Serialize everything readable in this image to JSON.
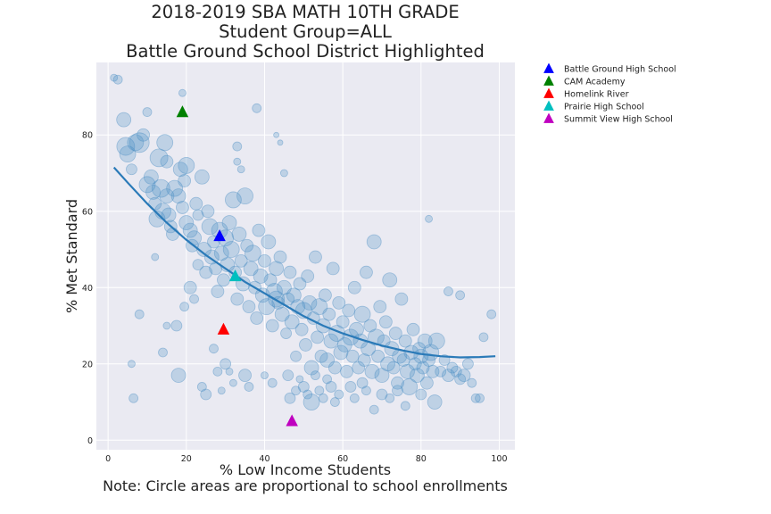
{
  "chart_data": {
    "type": "scatter",
    "title": [
      "2018-2019 SBA MATH 10TH GRADE",
      "Student Group=ALL",
      "Battle Ground School District Highlighted"
    ],
    "xlabel": "% Low Income Students",
    "ylabel": "% Met Standard",
    "note": "Note: Circle areas are proportional to school enrollments",
    "xlim": [
      -3,
      104
    ],
    "ylim": [
      -2.5,
      99
    ],
    "xticks": [
      0,
      20,
      40,
      60,
      80,
      100
    ],
    "yticks": [
      0,
      20,
      40,
      60,
      80
    ],
    "grid": true,
    "legend_position": "outside-top-right",
    "background_color": "#eaeaf2",
    "bubble_color": "#4c8fc4",
    "trend_color": "#2a7ab8",
    "schools_scatter": [
      [
        1.5,
        95,
        4
      ],
      [
        2.5,
        94.5,
        5
      ],
      [
        4,
        84,
        8
      ],
      [
        4.5,
        77,
        10
      ],
      [
        5,
        75,
        9
      ],
      [
        6,
        71,
        6
      ],
      [
        7,
        78,
        9
      ],
      [
        8,
        78,
        11
      ],
      [
        9,
        80,
        7
      ],
      [
        10,
        86,
        5
      ],
      [
        10,
        67,
        9
      ],
      [
        11,
        69,
        8
      ],
      [
        11.5,
        65,
        8
      ],
      [
        12,
        62,
        7
      ],
      [
        12.5,
        58,
        9
      ],
      [
        13,
        74,
        10
      ],
      [
        13.5,
        66,
        10
      ],
      [
        14,
        60,
        9
      ],
      [
        14.5,
        78,
        9
      ],
      [
        15,
        73,
        7
      ],
      [
        15,
        64,
        8
      ],
      [
        15.5,
        59,
        8
      ],
      [
        16,
        56,
        7
      ],
      [
        16.5,
        54,
        7
      ],
      [
        17,
        66,
        9
      ],
      [
        18,
        64,
        8
      ],
      [
        18.5,
        71,
        8
      ],
      [
        19,
        61,
        7
      ],
      [
        19.5,
        68,
        7
      ],
      [
        20,
        72,
        9
      ],
      [
        20,
        57,
        8
      ],
      [
        21,
        55,
        8
      ],
      [
        21.5,
        51,
        7
      ],
      [
        22,
        53,
        8
      ],
      [
        22.5,
        62,
        7
      ],
      [
        23,
        59,
        6
      ],
      [
        23,
        46,
        6
      ],
      [
        24,
        69,
        8
      ],
      [
        24.5,
        50,
        8
      ],
      [
        25,
        44,
        7
      ],
      [
        25.5,
        60,
        7
      ],
      [
        26,
        56,
        9
      ],
      [
        26.5,
        48,
        8
      ],
      [
        27,
        52,
        7
      ],
      [
        27.5,
        45,
        7
      ],
      [
        28,
        39,
        7
      ],
      [
        28.5,
        55,
        9
      ],
      [
        29,
        49,
        8
      ],
      [
        29.5,
        42,
        7
      ],
      [
        30,
        53,
        9
      ],
      [
        30.5,
        46,
        8
      ],
      [
        31,
        57,
        8
      ],
      [
        31.5,
        50,
        9
      ],
      [
        32,
        63,
        9
      ],
      [
        32.5,
        44,
        7
      ],
      [
        33,
        37,
        7
      ],
      [
        33.5,
        54,
        8
      ],
      [
        34,
        47,
        7
      ],
      [
        34.5,
        41,
        8
      ],
      [
        35,
        64,
        9
      ],
      [
        35.5,
        51,
        7
      ],
      [
        36,
        35,
        7
      ],
      [
        36.5,
        45,
        8
      ],
      [
        37,
        49,
        9
      ],
      [
        37.5,
        40,
        7
      ],
      [
        38,
        32,
        7
      ],
      [
        38.5,
        55,
        7
      ],
      [
        39,
        43,
        8
      ],
      [
        39.5,
        38,
        8
      ],
      [
        40,
        47,
        7
      ],
      [
        40.5,
        35,
        9
      ],
      [
        41,
        52,
        8
      ],
      [
        41.5,
        42,
        7
      ],
      [
        42,
        30,
        7
      ],
      [
        42.5,
        39,
        9
      ],
      [
        43,
        45,
        8
      ],
      [
        43.5,
        36,
        7
      ],
      [
        44,
        48,
        7
      ],
      [
        44.5,
        33,
        8
      ],
      [
        45,
        40,
        8
      ],
      [
        45.5,
        28,
        6
      ],
      [
        46,
        37,
        7
      ],
      [
        46.5,
        44,
        7
      ],
      [
        47,
        31,
        8
      ],
      [
        47.5,
        38,
        8
      ],
      [
        48,
        22,
        6
      ],
      [
        48.5,
        35,
        8
      ],
      [
        49,
        41,
        7
      ],
      [
        49.5,
        29,
        7
      ],
      [
        50,
        34,
        9
      ],
      [
        50.5,
        25,
        7
      ],
      [
        51,
        43,
        7
      ],
      [
        51.5,
        36,
        8
      ],
      [
        52,
        19,
        8
      ],
      [
        52.5,
        32,
        7
      ],
      [
        53,
        48,
        7
      ],
      [
        53.5,
        27,
        7
      ],
      [
        54,
        35,
        9
      ],
      [
        54.5,
        22,
        7
      ],
      [
        55,
        30,
        8
      ],
      [
        55.5,
        38,
        7
      ],
      [
        56,
        21,
        8
      ],
      [
        56.5,
        33,
        7
      ],
      [
        57,
        26,
        8
      ],
      [
        57.5,
        45,
        7
      ],
      [
        58,
        19,
        7
      ],
      [
        58.5,
        28,
        9
      ],
      [
        59,
        36,
        7
      ],
      [
        59.5,
        23,
        8
      ],
      [
        60,
        31,
        7
      ],
      [
        60.5,
        25,
        8
      ],
      [
        61,
        18,
        7
      ],
      [
        61.5,
        34,
        7
      ],
      [
        62,
        27,
        9
      ],
      [
        62.5,
        22,
        7
      ],
      [
        63,
        40,
        7
      ],
      [
        63.5,
        29,
        8
      ],
      [
        64,
        19,
        7
      ],
      [
        64.5,
        26,
        8
      ],
      [
        65,
        33,
        9
      ],
      [
        65.5,
        21,
        7
      ],
      [
        66,
        44,
        7
      ],
      [
        66.5,
        24,
        8
      ],
      [
        67,
        30,
        7
      ],
      [
        67.5,
        18,
        8
      ],
      [
        68,
        52,
        8
      ],
      [
        68.5,
        27,
        9
      ],
      [
        69,
        22,
        7
      ],
      [
        69.5,
        35,
        7
      ],
      [
        70,
        17,
        8
      ],
      [
        70.5,
        26,
        7
      ],
      [
        71,
        31,
        7
      ],
      [
        71.5,
        20,
        8
      ],
      [
        72,
        42,
        8
      ],
      [
        72.5,
        24,
        8
      ],
      [
        73,
        19,
        7
      ],
      [
        73.5,
        28,
        7
      ],
      [
        74,
        15,
        7
      ],
      [
        74.5,
        22,
        8
      ],
      [
        75,
        37,
        7
      ],
      [
        75.5,
        21,
        7
      ],
      [
        76,
        26,
        7
      ],
      [
        76.5,
        18,
        8
      ],
      [
        77,
        14,
        9
      ],
      [
        77.5,
        23,
        8
      ],
      [
        78,
        29,
        7
      ],
      [
        78.5,
        20,
        7
      ],
      [
        79,
        17,
        8
      ],
      [
        79.5,
        24,
        7
      ],
      [
        80,
        22,
        8
      ],
      [
        80.5,
        19,
        7
      ],
      [
        81,
        26,
        8
      ],
      [
        81.5,
        15,
        7
      ],
      [
        82,
        21,
        7
      ],
      [
        82.5,
        23,
        9
      ],
      [
        83,
        18,
        7
      ],
      [
        83.5,
        10,
        8
      ],
      [
        84,
        26,
        9
      ],
      [
        85,
        18,
        6
      ],
      [
        86,
        21,
        6
      ],
      [
        87,
        17,
        7
      ],
      [
        88,
        19,
        6
      ],
      [
        89,
        18,
        6
      ],
      [
        90,
        16,
        6
      ],
      [
        91,
        17,
        7
      ],
      [
        92,
        20,
        6
      ],
      [
        93,
        15,
        5
      ],
      [
        94,
        11,
        5
      ],
      [
        95,
        11,
        5
      ],
      [
        98,
        33,
        5
      ],
      [
        6,
        20,
        4
      ],
      [
        6.5,
        11,
        5
      ],
      [
        8,
        33,
        5
      ],
      [
        12,
        48,
        4
      ],
      [
        14,
        23,
        5
      ],
      [
        15,
        30,
        4
      ],
      [
        17.5,
        30,
        6
      ],
      [
        18,
        17,
        8
      ],
      [
        19,
        91,
        4
      ],
      [
        19.5,
        35,
        5
      ],
      [
        21,
        40,
        7
      ],
      [
        22,
        37,
        5
      ],
      [
        24,
        14,
        5
      ],
      [
        25,
        12,
        6
      ],
      [
        27,
        24,
        5
      ],
      [
        28,
        18,
        5
      ],
      [
        29,
        13,
        4
      ],
      [
        30,
        20,
        6
      ],
      [
        31,
        18,
        4
      ],
      [
        32,
        15,
        4
      ],
      [
        33,
        77,
        5
      ],
      [
        33,
        73,
        4
      ],
      [
        34,
        71,
        4
      ],
      [
        35,
        17,
        7
      ],
      [
        36,
        14,
        5
      ],
      [
        38,
        87,
        5
      ],
      [
        40,
        17,
        4
      ],
      [
        42,
        15,
        5
      ],
      [
        43,
        80,
        3
      ],
      [
        44,
        78,
        3
      ],
      [
        45,
        70,
        4
      ],
      [
        46,
        17,
        6
      ],
      [
        46.5,
        11,
        6
      ],
      [
        48,
        13,
        5
      ],
      [
        49,
        16,
        4
      ],
      [
        50,
        14,
        6
      ],
      [
        51,
        12,
        5
      ],
      [
        52,
        10,
        9
      ],
      [
        53,
        17,
        5
      ],
      [
        54,
        13,
        5
      ],
      [
        55,
        11,
        5
      ],
      [
        56,
        16,
        5
      ],
      [
        57,
        14,
        6
      ],
      [
        58,
        10,
        5
      ],
      [
        59,
        12,
        5
      ],
      [
        62,
        14,
        6
      ],
      [
        63,
        11,
        5
      ],
      [
        65,
        15,
        6
      ],
      [
        66,
        13,
        5
      ],
      [
        68,
        8,
        5
      ],
      [
        70,
        12,
        6
      ],
      [
        72,
        11,
        5
      ],
      [
        74,
        13,
        6
      ],
      [
        76,
        9,
        5
      ],
      [
        80,
        12,
        6
      ],
      [
        82,
        58,
        4
      ],
      [
        87,
        39,
        5
      ],
      [
        90,
        38,
        5
      ],
      [
        96,
        27,
        5
      ],
      [
        43,
        37,
        9
      ]
    ],
    "trend_line": [
      [
        1.5,
        71.5
      ],
      [
        5,
        67.5
      ],
      [
        10,
        62
      ],
      [
        15,
        57
      ],
      [
        20,
        52.5
      ],
      [
        25,
        48.5
      ],
      [
        30,
        45
      ],
      [
        35,
        41.5
      ],
      [
        40,
        38.5
      ],
      [
        45,
        35.5
      ],
      [
        50,
        32.5
      ],
      [
        55,
        30
      ],
      [
        60,
        28
      ],
      [
        65,
        26.3
      ],
      [
        70,
        24.8
      ],
      [
        75,
        23.6
      ],
      [
        80,
        22.6
      ],
      [
        85,
        22
      ],
      [
        90,
        21.7
      ],
      [
        95,
        21.8
      ],
      [
        99,
        22
      ]
    ],
    "highlighted_schools": [
      {
        "name": "Battle Ground High School",
        "x": 28.5,
        "y": 53.5,
        "color": "#0000ff"
      },
      {
        "name": "CAM Academy",
        "x": 19,
        "y": 86,
        "color": "#008000"
      },
      {
        "name": "Homelink River",
        "x": 29.5,
        "y": 29,
        "color": "#ff0000"
      },
      {
        "name": "Prairie High School",
        "x": 32.5,
        "y": 43,
        "color": "#00bfbf"
      },
      {
        "name": "Summit View High School",
        "x": 47,
        "y": 5,
        "color": "#bf00bf"
      }
    ]
  }
}
